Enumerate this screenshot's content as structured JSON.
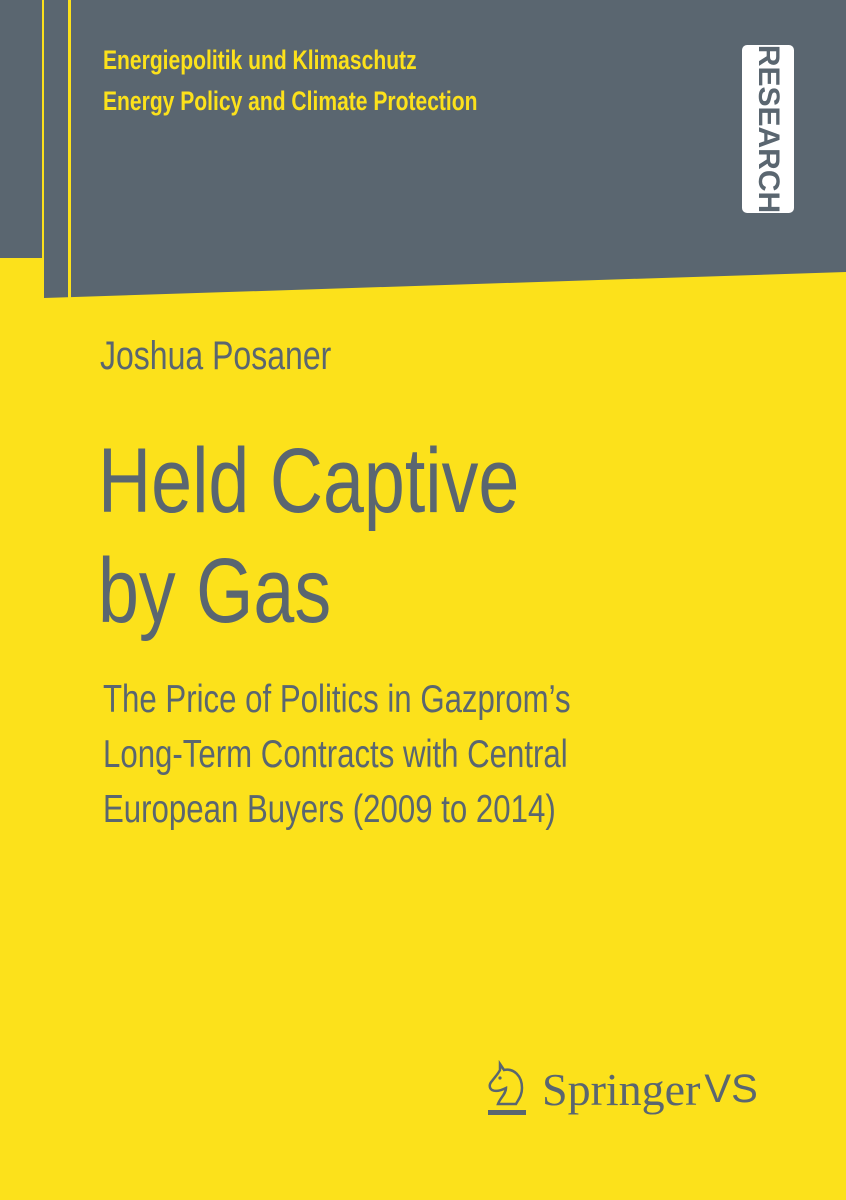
{
  "series": {
    "line1": "Energiepolitik und Klimaschutz",
    "line2": "Energy Policy and Climate Protection"
  },
  "badge": "RESEARCH",
  "author": "Joshua Posaner",
  "title": [
    "Held Captive",
    "by Gas"
  ],
  "subtitle": [
    "The Price of Politics in Gazprom’s",
    "Long-Term Contracts with Central",
    "European Buyers (2009 to 2014)"
  ],
  "publisher": {
    "name": "Springer",
    "imprint": "VS",
    "logo_icon": "knight-chess-piece-icon"
  },
  "colors": {
    "yellow": "#fce11b",
    "gray": "#5a6670"
  }
}
